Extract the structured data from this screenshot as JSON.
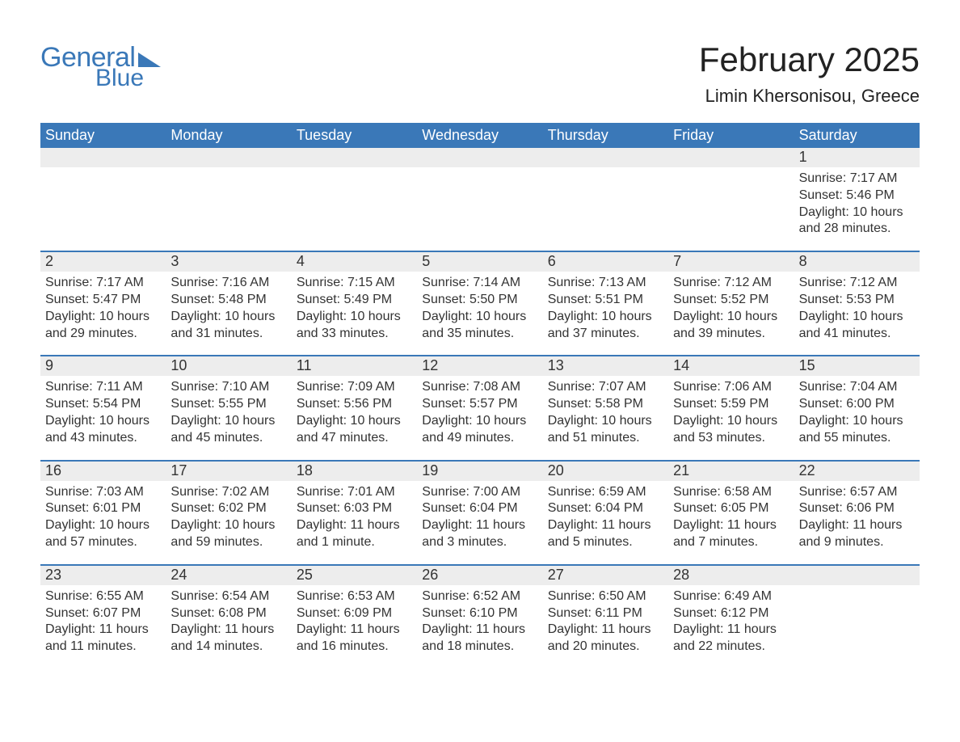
{
  "logo": {
    "word1": "General",
    "word2": "Blue"
  },
  "title": "February 2025",
  "location": "Limin Khersonisou, Greece",
  "colors": {
    "header_bg": "#3a78b8",
    "header_text": "#ffffff",
    "daynum_bg": "#ededed",
    "week_divider": "#3a78b8",
    "text": "#333333",
    "logo": "#3a78b8",
    "background": "#ffffff"
  },
  "layout": {
    "columns": 7,
    "weekday_fontsize": 18,
    "daynum_fontsize": 18,
    "info_fontsize": 16,
    "title_fontsize": 42,
    "location_fontsize": 22
  },
  "weekdays": [
    "Sunday",
    "Monday",
    "Tuesday",
    "Wednesday",
    "Thursday",
    "Friday",
    "Saturday"
  ],
  "weeks": [
    {
      "days": [
        {
          "day": "",
          "sunrise": "",
          "sunset": "",
          "daylight": ""
        },
        {
          "day": "",
          "sunrise": "",
          "sunset": "",
          "daylight": ""
        },
        {
          "day": "",
          "sunrise": "",
          "sunset": "",
          "daylight": ""
        },
        {
          "day": "",
          "sunrise": "",
          "sunset": "",
          "daylight": ""
        },
        {
          "day": "",
          "sunrise": "",
          "sunset": "",
          "daylight": ""
        },
        {
          "day": "",
          "sunrise": "",
          "sunset": "",
          "daylight": ""
        },
        {
          "day": "1",
          "sunrise": "Sunrise: 7:17 AM",
          "sunset": "Sunset: 5:46 PM",
          "daylight": "Daylight: 10 hours and 28 minutes."
        }
      ]
    },
    {
      "days": [
        {
          "day": "2",
          "sunrise": "Sunrise: 7:17 AM",
          "sunset": "Sunset: 5:47 PM",
          "daylight": "Daylight: 10 hours and 29 minutes."
        },
        {
          "day": "3",
          "sunrise": "Sunrise: 7:16 AM",
          "sunset": "Sunset: 5:48 PM",
          "daylight": "Daylight: 10 hours and 31 minutes."
        },
        {
          "day": "4",
          "sunrise": "Sunrise: 7:15 AM",
          "sunset": "Sunset: 5:49 PM",
          "daylight": "Daylight: 10 hours and 33 minutes."
        },
        {
          "day": "5",
          "sunrise": "Sunrise: 7:14 AM",
          "sunset": "Sunset: 5:50 PM",
          "daylight": "Daylight: 10 hours and 35 minutes."
        },
        {
          "day": "6",
          "sunrise": "Sunrise: 7:13 AM",
          "sunset": "Sunset: 5:51 PM",
          "daylight": "Daylight: 10 hours and 37 minutes."
        },
        {
          "day": "7",
          "sunrise": "Sunrise: 7:12 AM",
          "sunset": "Sunset: 5:52 PM",
          "daylight": "Daylight: 10 hours and 39 minutes."
        },
        {
          "day": "8",
          "sunrise": "Sunrise: 7:12 AM",
          "sunset": "Sunset: 5:53 PM",
          "daylight": "Daylight: 10 hours and 41 minutes."
        }
      ]
    },
    {
      "days": [
        {
          "day": "9",
          "sunrise": "Sunrise: 7:11 AM",
          "sunset": "Sunset: 5:54 PM",
          "daylight": "Daylight: 10 hours and 43 minutes."
        },
        {
          "day": "10",
          "sunrise": "Sunrise: 7:10 AM",
          "sunset": "Sunset: 5:55 PM",
          "daylight": "Daylight: 10 hours and 45 minutes."
        },
        {
          "day": "11",
          "sunrise": "Sunrise: 7:09 AM",
          "sunset": "Sunset: 5:56 PM",
          "daylight": "Daylight: 10 hours and 47 minutes."
        },
        {
          "day": "12",
          "sunrise": "Sunrise: 7:08 AM",
          "sunset": "Sunset: 5:57 PM",
          "daylight": "Daylight: 10 hours and 49 minutes."
        },
        {
          "day": "13",
          "sunrise": "Sunrise: 7:07 AM",
          "sunset": "Sunset: 5:58 PM",
          "daylight": "Daylight: 10 hours and 51 minutes."
        },
        {
          "day": "14",
          "sunrise": "Sunrise: 7:06 AM",
          "sunset": "Sunset: 5:59 PM",
          "daylight": "Daylight: 10 hours and 53 minutes."
        },
        {
          "day": "15",
          "sunrise": "Sunrise: 7:04 AM",
          "sunset": "Sunset: 6:00 PM",
          "daylight": "Daylight: 10 hours and 55 minutes."
        }
      ]
    },
    {
      "days": [
        {
          "day": "16",
          "sunrise": "Sunrise: 7:03 AM",
          "sunset": "Sunset: 6:01 PM",
          "daylight": "Daylight: 10 hours and 57 minutes."
        },
        {
          "day": "17",
          "sunrise": "Sunrise: 7:02 AM",
          "sunset": "Sunset: 6:02 PM",
          "daylight": "Daylight: 10 hours and 59 minutes."
        },
        {
          "day": "18",
          "sunrise": "Sunrise: 7:01 AM",
          "sunset": "Sunset: 6:03 PM",
          "daylight": "Daylight: 11 hours and 1 minute."
        },
        {
          "day": "19",
          "sunrise": "Sunrise: 7:00 AM",
          "sunset": "Sunset: 6:04 PM",
          "daylight": "Daylight: 11 hours and 3 minutes."
        },
        {
          "day": "20",
          "sunrise": "Sunrise: 6:59 AM",
          "sunset": "Sunset: 6:04 PM",
          "daylight": "Daylight: 11 hours and 5 minutes."
        },
        {
          "day": "21",
          "sunrise": "Sunrise: 6:58 AM",
          "sunset": "Sunset: 6:05 PM",
          "daylight": "Daylight: 11 hours and 7 minutes."
        },
        {
          "day": "22",
          "sunrise": "Sunrise: 6:57 AM",
          "sunset": "Sunset: 6:06 PM",
          "daylight": "Daylight: 11 hours and 9 minutes."
        }
      ]
    },
    {
      "days": [
        {
          "day": "23",
          "sunrise": "Sunrise: 6:55 AM",
          "sunset": "Sunset: 6:07 PM",
          "daylight": "Daylight: 11 hours and 11 minutes."
        },
        {
          "day": "24",
          "sunrise": "Sunrise: 6:54 AM",
          "sunset": "Sunset: 6:08 PM",
          "daylight": "Daylight: 11 hours and 14 minutes."
        },
        {
          "day": "25",
          "sunrise": "Sunrise: 6:53 AM",
          "sunset": "Sunset: 6:09 PM",
          "daylight": "Daylight: 11 hours and 16 minutes."
        },
        {
          "day": "26",
          "sunrise": "Sunrise: 6:52 AM",
          "sunset": "Sunset: 6:10 PM",
          "daylight": "Daylight: 11 hours and 18 minutes."
        },
        {
          "day": "27",
          "sunrise": "Sunrise: 6:50 AM",
          "sunset": "Sunset: 6:11 PM",
          "daylight": "Daylight: 11 hours and 20 minutes."
        },
        {
          "day": "28",
          "sunrise": "Sunrise: 6:49 AM",
          "sunset": "Sunset: 6:12 PM",
          "daylight": "Daylight: 11 hours and 22 minutes."
        },
        {
          "day": "",
          "sunrise": "",
          "sunset": "",
          "daylight": ""
        }
      ]
    }
  ]
}
